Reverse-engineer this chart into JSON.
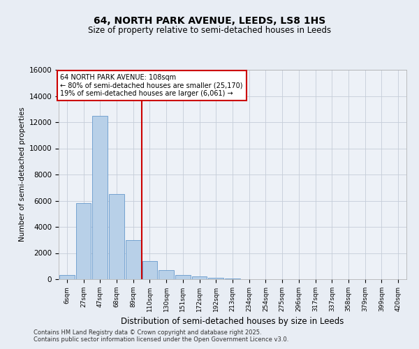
{
  "title1": "64, NORTH PARK AVENUE, LEEDS, LS8 1HS",
  "title2": "Size of property relative to semi-detached houses in Leeds",
  "xlabel": "Distribution of semi-detached houses by size in Leeds",
  "ylabel": "Number of semi-detached properties",
  "categories": [
    "6sqm",
    "27sqm",
    "47sqm",
    "68sqm",
    "89sqm",
    "110sqm",
    "130sqm",
    "151sqm",
    "172sqm",
    "192sqm",
    "213sqm",
    "234sqm",
    "254sqm",
    "275sqm",
    "296sqm",
    "317sqm",
    "337sqm",
    "358sqm",
    "379sqm",
    "399sqm",
    "420sqm"
  ],
  "bar_values": [
    300,
    5800,
    12500,
    6500,
    3000,
    1400,
    700,
    300,
    200,
    100,
    50,
    20,
    10,
    5,
    3,
    2,
    1,
    1,
    0,
    0,
    0
  ],
  "bar_color": "#b8d0e8",
  "bar_edge_color": "#6699cc",
  "vline_color": "#cc0000",
  "vline_x": 4.5,
  "annotation_line1": "64 NORTH PARK AVENUE: 108sqm",
  "annotation_line2": "← 80% of semi-detached houses are smaller (25,170)",
  "annotation_line3": "19% of semi-detached houses are larger (6,061) →",
  "annotation_box_color": "#ffffff",
  "annotation_box_edge": "#cc0000",
  "ylim": [
    0,
    16000
  ],
  "yticks": [
    0,
    2000,
    4000,
    6000,
    8000,
    10000,
    12000,
    14000,
    16000
  ],
  "footer1": "Contains HM Land Registry data © Crown copyright and database right 2025.",
  "footer2": "Contains public sector information licensed under the Open Government Licence v3.0.",
  "bg_color": "#e8edf4",
  "plot_bg_color": "#edf1f7"
}
